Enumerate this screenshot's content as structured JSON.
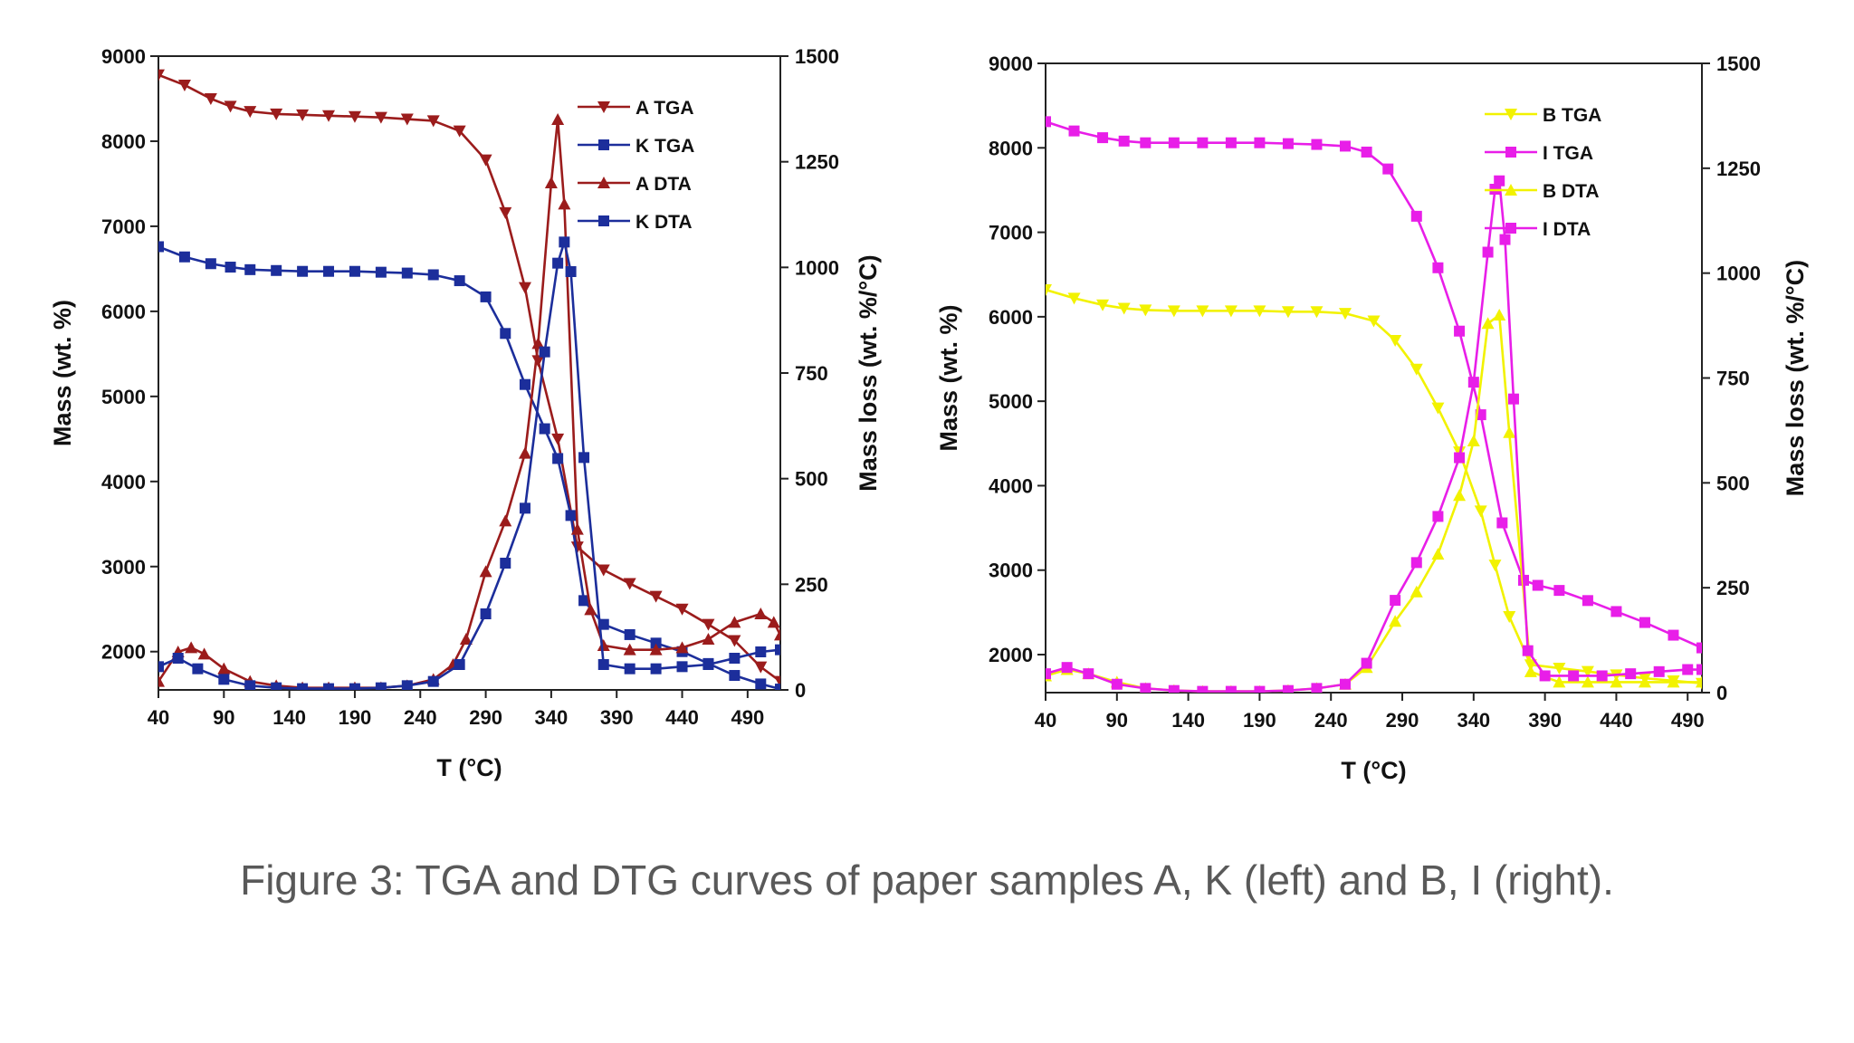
{
  "caption": "Figure 3: TGA and DTG curves of paper samples A, K (left) and B, I (right).",
  "chart_data": [
    {
      "type": "line",
      "xlabel": "T (°C)",
      "ylabel": "Mass (wt. %)",
      "y2label": "Mass loss (wt. %/°C)",
      "xlim": [
        40,
        515
      ],
      "ylim": [
        1550,
        9000
      ],
      "y2lim": [
        0,
        1500
      ],
      "xticks": [
        40,
        90,
        140,
        190,
        240,
        290,
        340,
        390,
        440,
        490
      ],
      "yticks": [
        2000,
        3000,
        4000,
        5000,
        6000,
        7000,
        8000,
        9000
      ],
      "y2ticks": [
        0,
        250,
        500,
        750,
        1000,
        1250,
        1500
      ],
      "legend_position": "top-right",
      "series": [
        {
          "name": "A TGA",
          "axis": "left",
          "color": "#9b1c1c",
          "marker": "triangle-down",
          "x": [
            40,
            60,
            80,
            95,
            110,
            130,
            150,
            170,
            190,
            210,
            230,
            250,
            270,
            290,
            305,
            320,
            330,
            345,
            360,
            380,
            400,
            420,
            440,
            460,
            480,
            500,
            515
          ],
          "y": [
            8780,
            8660,
            8500,
            8410,
            8350,
            8320,
            8310,
            8300,
            8290,
            8280,
            8260,
            8240,
            8120,
            7780,
            7160,
            6280,
            5420,
            4500,
            3230,
            2960,
            2800,
            2650,
            2500,
            2320,
            2130,
            1820,
            1650
          ]
        },
        {
          "name": "K TGA",
          "axis": "left",
          "color": "#1c2e9b",
          "marker": "square",
          "x": [
            40,
            60,
            80,
            95,
            110,
            130,
            150,
            170,
            190,
            210,
            230,
            250,
            270,
            290,
            305,
            320,
            335,
            345,
            355,
            365,
            380,
            400,
            420,
            440,
            460,
            480,
            500,
            515
          ],
          "y": [
            6760,
            6640,
            6560,
            6520,
            6490,
            6480,
            6470,
            6470,
            6470,
            6460,
            6450,
            6430,
            6360,
            6170,
            5740,
            5140,
            4620,
            4270,
            3600,
            2600,
            2320,
            2200,
            2100,
            2000,
            1860,
            1720,
            1620,
            1560
          ]
        },
        {
          "name": "A DTA",
          "axis": "right",
          "color": "#9b1c1c",
          "marker": "triangle-up",
          "x": [
            40,
            55,
            65,
            75,
            90,
            110,
            130,
            150,
            170,
            190,
            210,
            230,
            250,
            265,
            275,
            290,
            305,
            320,
            330,
            340,
            345,
            350,
            360,
            370,
            380,
            400,
            420,
            440,
            460,
            480,
            500,
            510,
            515
          ],
          "y": [
            20,
            90,
            100,
            85,
            50,
            20,
            10,
            5,
            5,
            5,
            5,
            10,
            25,
            60,
            120,
            280,
            400,
            560,
            820,
            1200,
            1350,
            1150,
            380,
            190,
            105,
            95,
            95,
            100,
            120,
            160,
            180,
            160,
            130
          ]
        },
        {
          "name": "K DTA",
          "axis": "right",
          "color": "#1c2e9b",
          "marker": "square",
          "x": [
            40,
            55,
            70,
            90,
            110,
            130,
            150,
            170,
            190,
            210,
            230,
            250,
            270,
            290,
            305,
            320,
            335,
            345,
            350,
            355,
            365,
            380,
            400,
            420,
            440,
            460,
            480,
            500,
            515
          ],
          "y": [
            55,
            75,
            50,
            25,
            10,
            5,
            3,
            3,
            3,
            5,
            10,
            20,
            60,
            180,
            300,
            430,
            800,
            1010,
            1060,
            990,
            550,
            60,
            50,
            50,
            55,
            60,
            75,
            90,
            95
          ]
        }
      ]
    },
    {
      "type": "line",
      "xlabel": "T (°C)",
      "ylabel": "Mass (wt. %)",
      "y2label": "Mass loss (wt. %/°C)",
      "xlim": [
        40,
        500
      ],
      "ylim": [
        1550,
        9000
      ],
      "y2lim": [
        0,
        1500
      ],
      "xticks": [
        40,
        90,
        140,
        190,
        240,
        290,
        340,
        390,
        440,
        490
      ],
      "yticks": [
        2000,
        3000,
        4000,
        5000,
        6000,
        7000,
        8000,
        9000
      ],
      "y2ticks": [
        0,
        250,
        500,
        750,
        1000,
        1250,
        1500
      ],
      "legend_position": "top-right",
      "series": [
        {
          "name": "B TGA",
          "axis": "left",
          "color": "#f2f200",
          "marker": "triangle-down",
          "x": [
            40,
            60,
            80,
            95,
            110,
            130,
            150,
            170,
            190,
            210,
            230,
            250,
            270,
            285,
            300,
            315,
            330,
            345,
            355,
            365,
            380,
            400,
            420,
            440,
            460,
            480,
            500
          ],
          "y": [
            6320,
            6220,
            6140,
            6100,
            6080,
            6070,
            6070,
            6070,
            6070,
            6060,
            6060,
            6040,
            5950,
            5720,
            5380,
            4920,
            4400,
            3700,
            3060,
            2450,
            1880,
            1840,
            1800,
            1760,
            1720,
            1690,
            1660
          ]
        },
        {
          "name": "I TGA",
          "axis": "left",
          "color": "#e81ee8",
          "marker": "square",
          "x": [
            40,
            60,
            80,
            95,
            110,
            130,
            150,
            170,
            190,
            210,
            230,
            250,
            265,
            280,
            300,
            315,
            330,
            345,
            360,
            375,
            385,
            400,
            420,
            440,
            460,
            480,
            500
          ],
          "y": [
            8310,
            8200,
            8120,
            8080,
            8060,
            8060,
            8060,
            8060,
            8060,
            8050,
            8040,
            8020,
            7950,
            7750,
            7190,
            6580,
            5830,
            4840,
            3560,
            2880,
            2820,
            2760,
            2640,
            2510,
            2380,
            2230,
            2080
          ]
        },
        {
          "name": "B DTA",
          "axis": "right",
          "color": "#f2f200",
          "marker": "triangle-up",
          "x": [
            40,
            55,
            70,
            90,
            110,
            130,
            150,
            170,
            190,
            210,
            230,
            250,
            265,
            285,
            300,
            315,
            330,
            340,
            350,
            358,
            365,
            380,
            400,
            420,
            440,
            460,
            480,
            500
          ],
          "y": [
            40,
            55,
            45,
            25,
            10,
            5,
            3,
            3,
            3,
            5,
            10,
            20,
            60,
            170,
            240,
            330,
            470,
            600,
            880,
            900,
            620,
            50,
            25,
            25,
            25,
            25,
            25,
            25
          ]
        },
        {
          "name": "I DTA",
          "axis": "right",
          "color": "#e81ee8",
          "marker": "square",
          "x": [
            40,
            55,
            70,
            90,
            110,
            130,
            150,
            170,
            190,
            210,
            230,
            250,
            265,
            285,
            300,
            315,
            330,
            340,
            350,
            355,
            358,
            362,
            368,
            378,
            390,
            410,
            430,
            450,
            470,
            490,
            500
          ],
          "y": [
            45,
            60,
            45,
            20,
            10,
            5,
            3,
            3,
            3,
            5,
            10,
            20,
            70,
            220,
            310,
            420,
            560,
            740,
            1050,
            1200,
            1220,
            1080,
            700,
            100,
            40,
            40,
            40,
            45,
            50,
            55,
            55
          ]
        }
      ]
    }
  ]
}
